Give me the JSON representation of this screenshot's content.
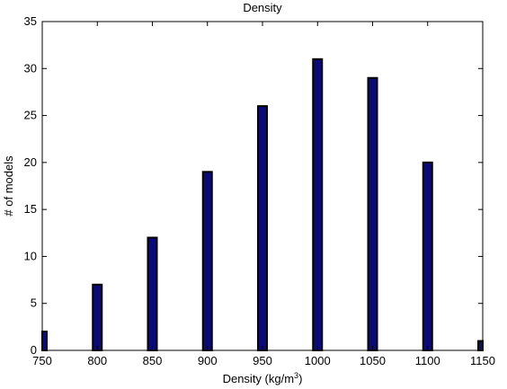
{
  "chart_data": {
    "type": "bar",
    "title": "Density",
    "xlabel": "Density (kg/m",
    "xlabel_sup": "3",
    "xlabel_end": ")",
    "ylabel": "# of models",
    "x": [
      750,
      800,
      850,
      900,
      950,
      1000,
      1050,
      1100,
      1150
    ],
    "values": [
      2,
      7,
      12,
      19,
      26,
      31,
      29,
      20,
      1
    ],
    "xlim": [
      750,
      1150
    ],
    "ylim": [
      0,
      35
    ],
    "xticks": [
      750,
      800,
      850,
      900,
      950,
      1000,
      1050,
      1100,
      1150
    ],
    "yticks": [
      0,
      5,
      10,
      15,
      20,
      25,
      30,
      35
    ],
    "bar_color": "#0a0a7a",
    "bar_edge_color": "#000000",
    "grid": false
  }
}
